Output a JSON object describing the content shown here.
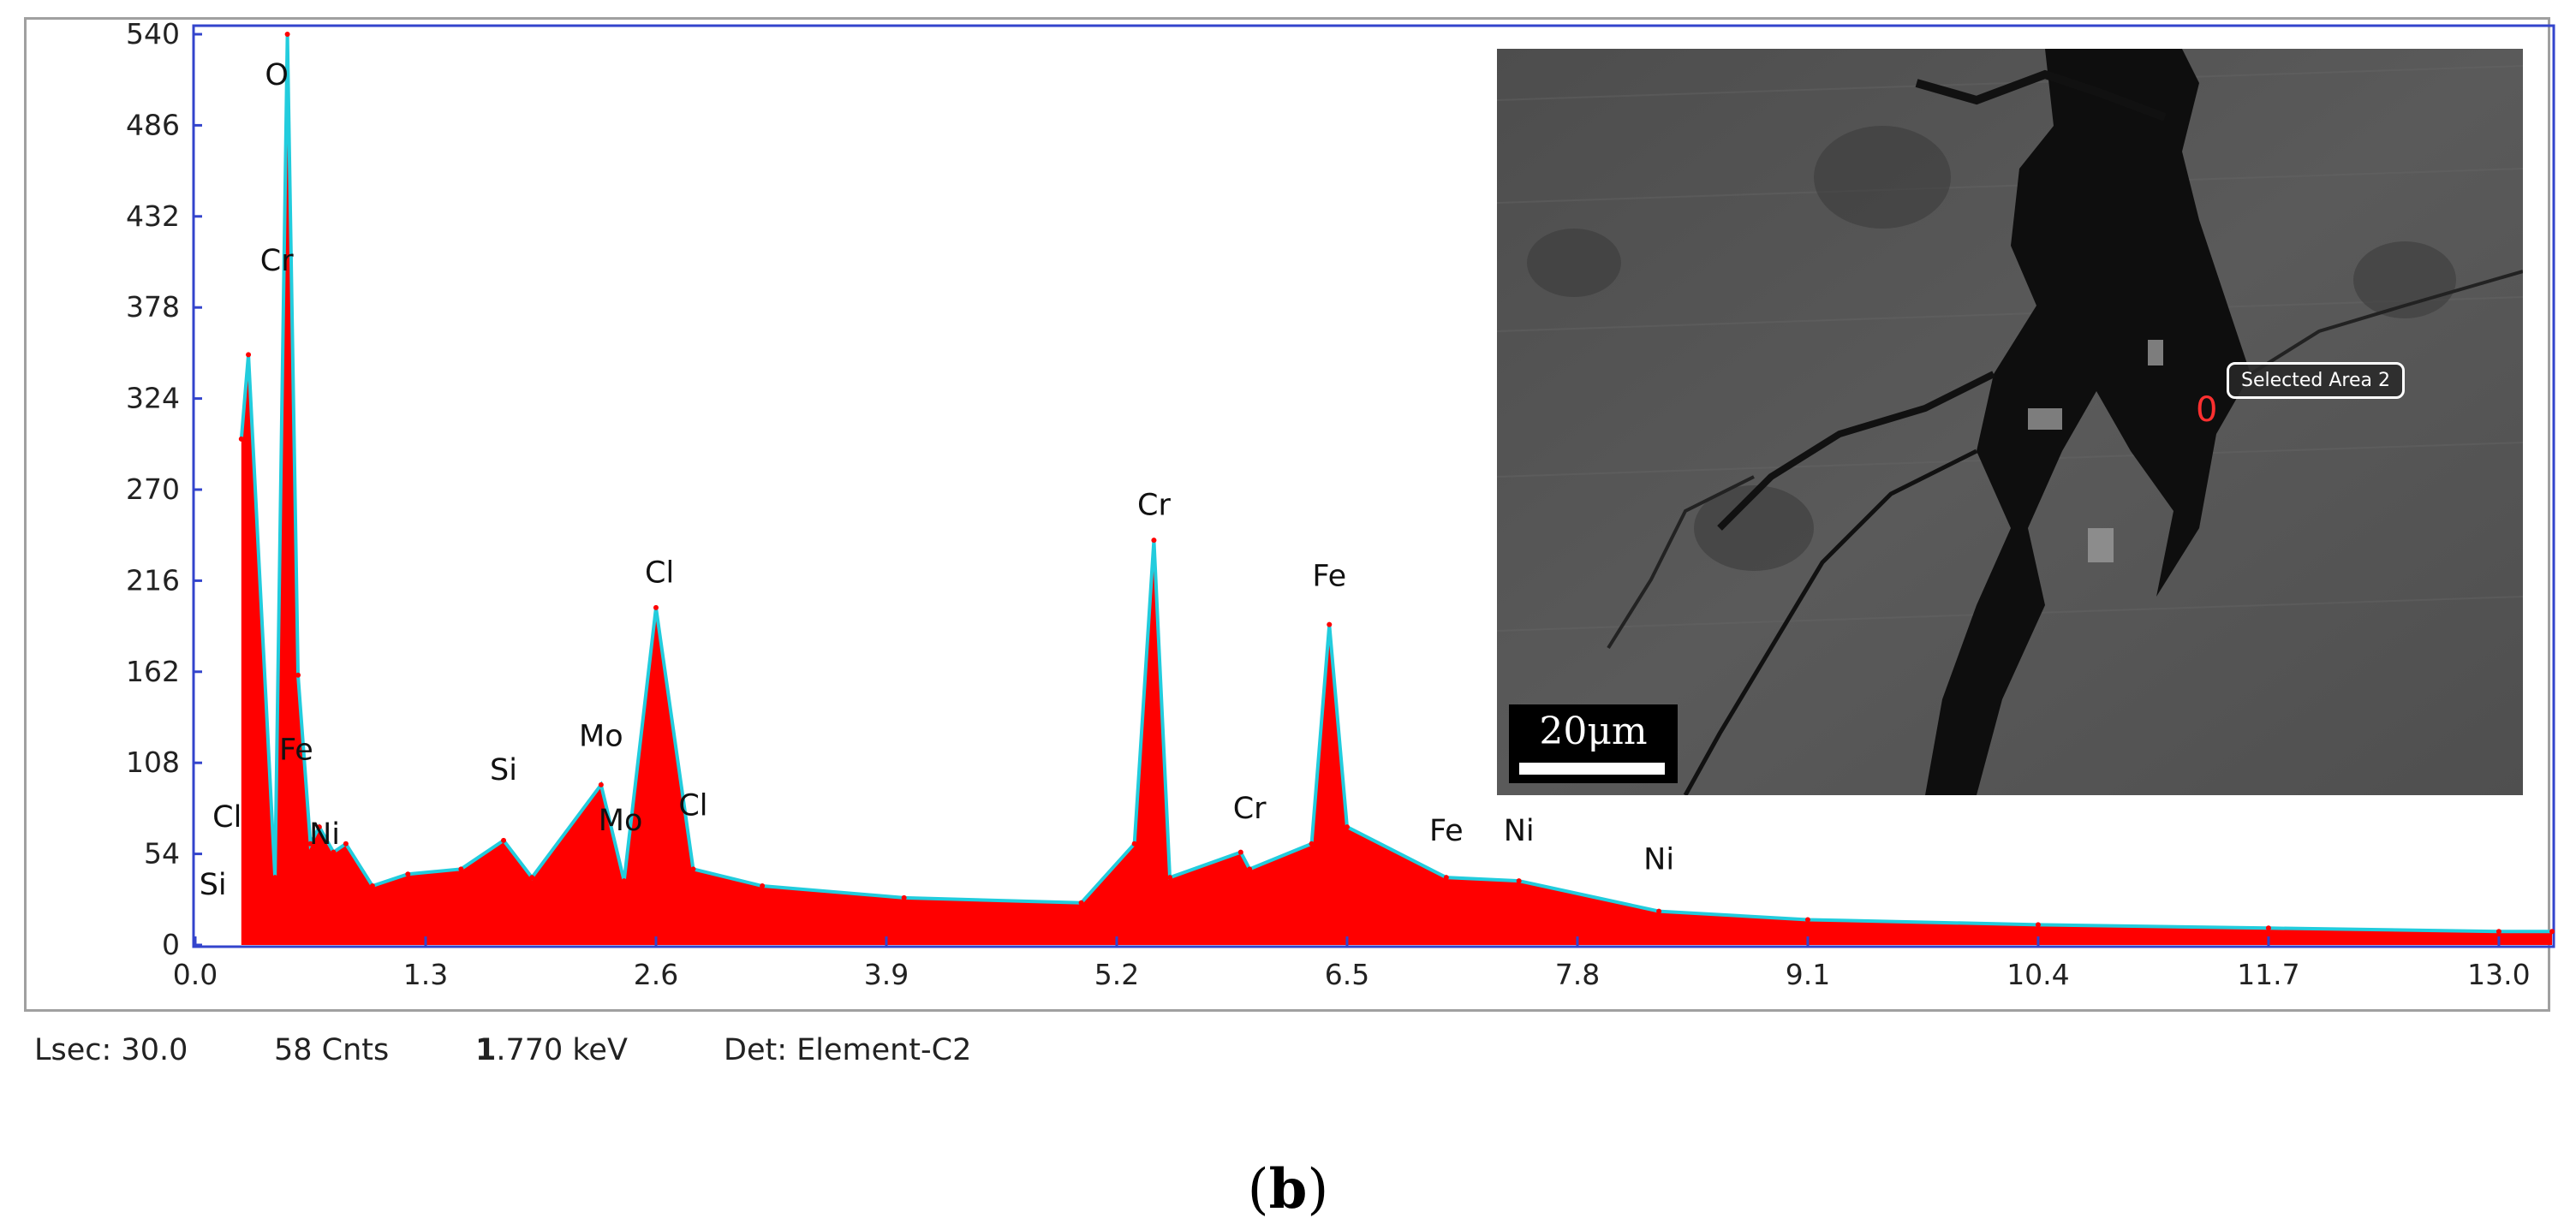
{
  "chart_data": {
    "type": "area",
    "title": "",
    "xlabel": "",
    "ylabel": "",
    "xlim": [
      0.0,
      13.3
    ],
    "ylim": [
      0,
      540
    ],
    "x_ticks": [
      "0.0",
      "1.3",
      "2.6",
      "3.9",
      "5.2",
      "6.5",
      "7.8",
      "9.1",
      "10.4",
      "11.7",
      "13.0"
    ],
    "y_ticks": [
      "0",
      "54",
      "108",
      "162",
      "216",
      "270",
      "324",
      "378",
      "432",
      "486",
      "540"
    ],
    "grid": false,
    "colors": {
      "spectrum": "#ff0000",
      "fit": "#22ccdd",
      "background": "#2a33cc",
      "frame": "#3344cc"
    },
    "series": [
      {
        "name": "",
        "x": [
          0.26,
          0.3,
          0.45,
          0.52,
          0.58,
          0.65,
          0.7,
          0.78,
          0.85,
          1.0,
          1.2,
          1.5,
          1.74,
          1.9,
          2.29,
          2.42,
          2.6,
          2.81,
          3.2,
          4.0,
          5.0,
          5.3,
          5.41,
          5.5,
          5.9,
          5.95,
          6.3,
          6.4,
          6.5,
          7.06,
          7.47,
          8.26,
          9.1,
          10.4,
          11.7,
          13.0,
          13.3
        ],
        "values": [
          300,
          350,
          40,
          540,
          160,
          60,
          70,
          55,
          60,
          35,
          42,
          45,
          62,
          40,
          95,
          38,
          200,
          45,
          35,
          28,
          25,
          60,
          240,
          40,
          55,
          45,
          60,
          190,
          70,
          40,
          38,
          20,
          15,
          12,
          10,
          8,
          8
        ]
      }
    ],
    "peak_labels": [
      {
        "label": "Si",
        "x": 0.1,
        "y": 30
      },
      {
        "label": "Cl",
        "x": 0.18,
        "y": 70
      },
      {
        "label": "O",
        "x": 0.46,
        "y": 510
      },
      {
        "label": "Cr",
        "x": 0.46,
        "y": 400
      },
      {
        "label": "Fe",
        "x": 0.57,
        "y": 110
      },
      {
        "label": "Ni",
        "x": 0.73,
        "y": 60
      },
      {
        "label": "Si",
        "x": 1.74,
        "y": 98
      },
      {
        "label": "Mo",
        "x": 2.29,
        "y": 118
      },
      {
        "label": "Mo",
        "x": 2.4,
        "y": 68
      },
      {
        "label": "Cl",
        "x": 2.62,
        "y": 215
      },
      {
        "label": "Cl",
        "x": 2.81,
        "y": 77
      },
      {
        "label": "Cr",
        "x": 5.41,
        "y": 255
      },
      {
        "label": "Cr",
        "x": 5.95,
        "y": 75
      },
      {
        "label": "Fe",
        "x": 6.4,
        "y": 213
      },
      {
        "label": "Fe",
        "x": 7.06,
        "y": 62
      },
      {
        "label": "Ni",
        "x": 7.47,
        "y": 62
      },
      {
        "label": "Ni",
        "x": 8.26,
        "y": 45
      }
    ]
  },
  "status_bar": {
    "lsec": "Lsec: 30.0",
    "counts": "58 Cnts",
    "energy_bold": "1",
    "energy_rest": ".770 keV",
    "detector": "Det: Element-C2"
  },
  "sem_image": {
    "scale_label": "20μm",
    "area_label": "Selected Area 2",
    "area_marker": "0"
  },
  "caption": {
    "open": "(",
    "letter": "b",
    "close": ")"
  }
}
